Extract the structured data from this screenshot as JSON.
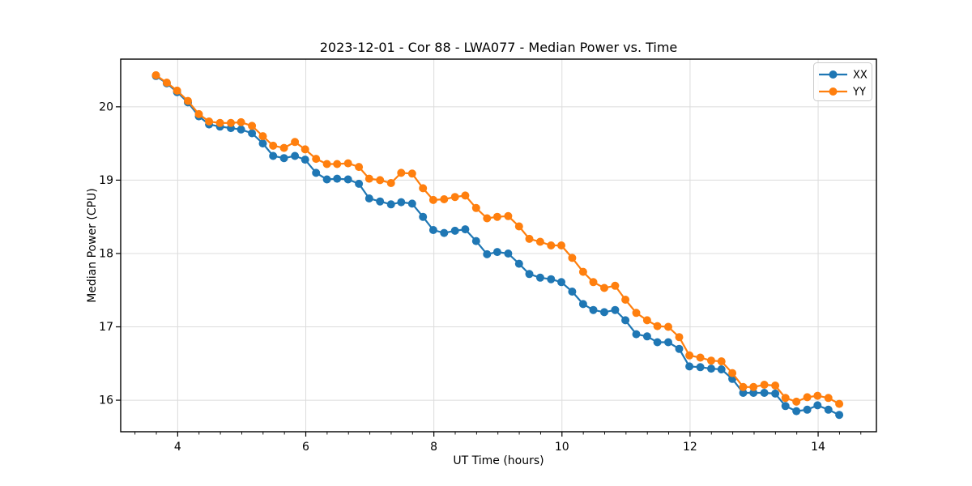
{
  "chart_data": {
    "type": "line",
    "title": "2023-12-01 - Cor 88 - LWA077 - Median Power vs. Time",
    "xlabel": "UT Time (hours)",
    "ylabel": "Median Power (CPU)",
    "xlim": [
      3.11,
      14.91
    ],
    "ylim": [
      15.57,
      20.65
    ],
    "x_ticks": [
      4,
      6,
      8,
      10,
      12,
      14
    ],
    "y_ticks": [
      16,
      17,
      18,
      19,
      20
    ],
    "x_minor_tick_interval": 0.3333,
    "grid": true,
    "grid_color": "#dcdcdc",
    "spine_color": "#000000",
    "legend": {
      "position": "upper right",
      "entries": [
        "XX",
        "YY"
      ]
    },
    "x": [
      3.66,
      3.83,
      3.99,
      4.16,
      4.33,
      4.49,
      4.66,
      4.83,
      4.99,
      5.16,
      5.33,
      5.49,
      5.66,
      5.83,
      5.99,
      6.16,
      6.33,
      6.49,
      6.66,
      6.83,
      6.99,
      7.16,
      7.33,
      7.49,
      7.66,
      7.83,
      7.99,
      8.16,
      8.33,
      8.49,
      8.66,
      8.83,
      8.99,
      9.16,
      9.33,
      9.49,
      9.66,
      9.83,
      9.99,
      10.16,
      10.33,
      10.49,
      10.66,
      10.83,
      10.99,
      11.16,
      11.33,
      11.49,
      11.66,
      11.83,
      11.99,
      12.16,
      12.33,
      12.49,
      12.66,
      12.83,
      12.99,
      13.16,
      13.33,
      13.49,
      13.66,
      13.83,
      13.99,
      14.16,
      14.33
    ],
    "series": [
      {
        "name": "XX",
        "color": "#1f77b4",
        "marker": "circle",
        "values": [
          20.42,
          20.32,
          20.2,
          20.06,
          19.87,
          19.76,
          19.73,
          19.71,
          19.69,
          19.64,
          19.5,
          19.33,
          19.3,
          19.33,
          19.28,
          19.1,
          19.01,
          19.02,
          19.01,
          18.95,
          18.75,
          18.71,
          18.67,
          18.7,
          18.68,
          18.5,
          18.32,
          18.28,
          18.31,
          18.33,
          18.17,
          17.99,
          18.02,
          18.0,
          17.86,
          17.72,
          17.67,
          17.65,
          17.61,
          17.48,
          17.31,
          17.23,
          17.2,
          17.23,
          17.09,
          16.9,
          16.87,
          16.79,
          16.79,
          16.7,
          16.46,
          16.45,
          16.43,
          16.42,
          16.29,
          16.1,
          16.1,
          16.1,
          16.09,
          15.92,
          15.85,
          15.87,
          15.93,
          15.87,
          15.8
        ]
      },
      {
        "name": "YY",
        "color": "#ff7f0e",
        "marker": "circle",
        "values": [
          20.43,
          20.33,
          20.22,
          20.08,
          19.9,
          19.8,
          19.78,
          19.78,
          19.79,
          19.74,
          19.6,
          19.47,
          19.44,
          19.52,
          19.42,
          19.29,
          19.22,
          19.22,
          19.23,
          19.18,
          19.02,
          19.0,
          18.96,
          19.1,
          19.09,
          18.89,
          18.73,
          18.74,
          18.77,
          18.79,
          18.62,
          18.48,
          18.5,
          18.51,
          18.37,
          18.2,
          18.16,
          18.11,
          18.11,
          17.94,
          17.75,
          17.61,
          17.53,
          17.56,
          17.37,
          17.19,
          17.09,
          17.01,
          17.0,
          16.86,
          16.61,
          16.58,
          16.54,
          16.53,
          16.37,
          16.18,
          16.18,
          16.21,
          16.2,
          16.03,
          15.98,
          16.04,
          16.06,
          16.03,
          15.95
        ]
      }
    ]
  }
}
